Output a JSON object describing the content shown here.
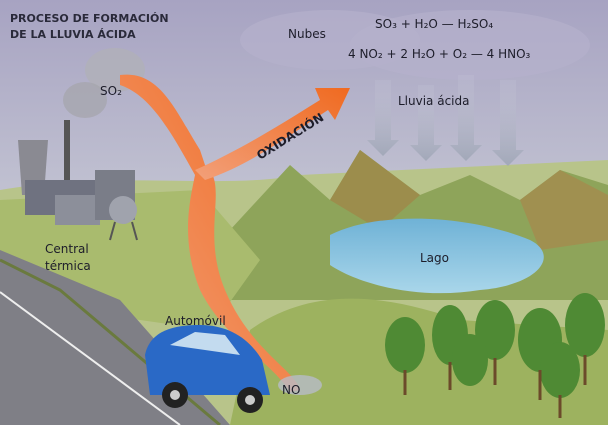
{
  "title": {
    "line1": "PROCESO DE FORMACIÓN",
    "line2": "DE LA LLUVIA ÁCIDA"
  },
  "labels": {
    "clouds": "Nubes",
    "equation1": "SO₃ + H₂O — H₂SO₄",
    "equation2": "4 NO₂ + 2 H₂O + O₂ — 4 HNO₃",
    "rain": "Lluvia ácida",
    "so2": "SO₂",
    "oxidation": "OXIDACIÓN",
    "plant_line1": "Central",
    "plant_line2": "térmica",
    "lake": "Lago",
    "car": "Automóvil",
    "no": "NO"
  }
}
